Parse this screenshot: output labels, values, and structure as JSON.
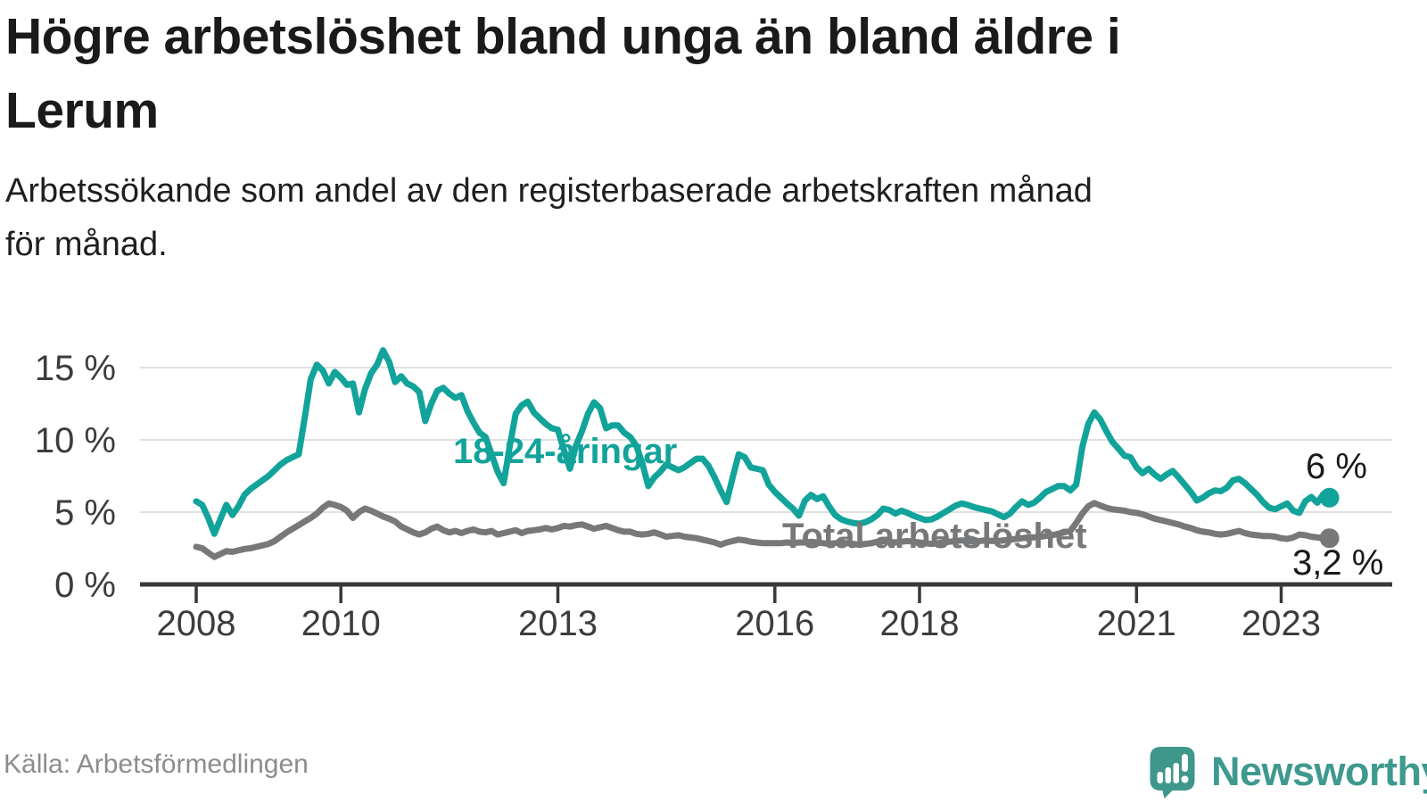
{
  "header": {
    "title_lines": [
      "Högre arbetslöshet bland unga än bland äldre i",
      "Lerum"
    ],
    "subtitle_lines": [
      "Arbetssökande som andel av den registerbaserade arbetskraften månad",
      "för månad."
    ]
  },
  "footer": {
    "source": "Källa: Arbetsförmedlingen",
    "brand": "Newsworthy"
  },
  "colors": {
    "youth": "#12a39a",
    "total": "#77787a",
    "grid": "#e0e0e0",
    "axis": "#383838",
    "tick_text": "#3c3c3c",
    "value_text": "#1a1a1a",
    "brand_teal": "#3e998e",
    "source_text": "#8c8c8c"
  },
  "chart_data": {
    "type": "line",
    "title": "Högre arbetslöshet bland unga än bland äldre i Lerum",
    "subtitle": "Arbetssökande som andel av den registerbaserade arbetskraften månad för månad.",
    "source": "Arbetsförmedlingen",
    "frequency": "monthly",
    "x_start": "2008-01",
    "x_end": "2023-09",
    "grid": "horizontal",
    "ylim": [
      0,
      17.5
    ],
    "x_ticks": [
      {
        "label": "2008",
        "year": 2008
      },
      {
        "label": "2010",
        "year": 2010
      },
      {
        "label": "2013",
        "year": 2013
      },
      {
        "label": "2016",
        "year": 2016
      },
      {
        "label": "2018",
        "year": 2018
      },
      {
        "label": "2021",
        "year": 2021
      },
      {
        "label": "2023",
        "year": 2023
      }
    ],
    "y_ticks": [
      {
        "label": "0 %",
        "value": 0
      },
      {
        "label": "5 %",
        "value": 5
      },
      {
        "label": "10 %",
        "value": 10
      },
      {
        "label": "15 %",
        "value": 15
      }
    ],
    "series": [
      {
        "name": "18-24-åringar",
        "color": "#12a39a",
        "end_label": "6 %",
        "end_value": 6.0,
        "values": [
          5.75,
          5.5,
          4.6,
          3.5,
          4.5,
          5.5,
          4.8,
          5.4,
          6.2,
          6.6,
          6.9,
          7.2,
          7.5,
          7.9,
          8.3,
          8.6,
          8.8,
          9.0,
          11.5,
          14.2,
          15.2,
          14.8,
          13.9,
          14.7,
          14.3,
          13.8,
          13.9,
          11.9,
          13.5,
          14.6,
          15.2,
          16.2,
          15.4,
          14.0,
          14.4,
          13.9,
          13.7,
          13.3,
          11.3,
          12.5,
          13.4,
          13.6,
          13.2,
          12.9,
          13.1,
          12.0,
          11.2,
          10.5,
          10.2,
          9.0,
          7.8,
          7.0,
          9.5,
          11.8,
          12.4,
          12.65,
          11.9,
          11.5,
          11.1,
          10.8,
          10.7,
          9.3,
          8.0,
          9.6,
          10.6,
          11.8,
          12.6,
          12.2,
          10.8,
          11.0,
          11.0,
          10.5,
          10.2,
          9.6,
          8.4,
          6.8,
          7.4,
          7.8,
          8.3,
          8.1,
          7.9,
          8.1,
          8.4,
          8.7,
          8.7,
          8.2,
          7.4,
          6.5,
          5.7,
          7.4,
          9.0,
          8.8,
          8.1,
          8.0,
          7.9,
          6.9,
          6.4,
          6.0,
          5.6,
          5.25,
          4.75,
          5.8,
          6.2,
          5.9,
          6.1,
          5.4,
          4.8,
          4.5,
          4.35,
          4.25,
          4.2,
          4.3,
          4.5,
          4.8,
          5.25,
          5.15,
          4.9,
          5.1,
          4.95,
          4.75,
          4.6,
          4.45,
          4.5,
          4.7,
          4.95,
          5.2,
          5.45,
          5.6,
          5.5,
          5.35,
          5.25,
          5.15,
          5.05,
          4.85,
          4.65,
          4.9,
          5.35,
          5.75,
          5.5,
          5.65,
          6.0,
          6.4,
          6.6,
          6.8,
          6.8,
          6.5,
          6.9,
          9.5,
          11.1,
          11.9,
          11.4,
          10.6,
          9.85,
          9.4,
          8.9,
          8.8,
          8.1,
          7.7,
          8.0,
          7.6,
          7.3,
          7.6,
          7.85,
          7.4,
          6.9,
          6.4,
          5.8,
          6.0,
          6.3,
          6.5,
          6.45,
          6.7,
          7.2,
          7.3,
          7.0,
          6.6,
          6.2,
          5.7,
          5.3,
          5.2,
          5.4,
          5.6,
          5.1,
          4.95,
          5.75,
          6.05,
          5.65,
          6.25,
          6.0
        ]
      },
      {
        "name": "Total arbetslöshet",
        "color": "#77787a",
        "end_label": "3,2 %",
        "end_value": 3.2,
        "values": [
          2.6,
          2.5,
          2.2,
          1.9,
          2.1,
          2.3,
          2.25,
          2.35,
          2.45,
          2.5,
          2.6,
          2.7,
          2.8,
          3.0,
          3.3,
          3.6,
          3.85,
          4.1,
          4.35,
          4.6,
          4.9,
          5.3,
          5.6,
          5.5,
          5.35,
          5.1,
          4.6,
          5.0,
          5.25,
          5.1,
          4.9,
          4.7,
          4.55,
          4.35,
          4.0,
          3.8,
          3.6,
          3.45,
          3.6,
          3.85,
          4.0,
          3.75,
          3.6,
          3.7,
          3.55,
          3.7,
          3.8,
          3.65,
          3.6,
          3.7,
          3.45,
          3.55,
          3.65,
          3.75,
          3.55,
          3.7,
          3.75,
          3.8,
          3.9,
          3.8,
          3.9,
          4.05,
          4.0,
          4.1,
          4.15,
          4.0,
          3.85,
          3.95,
          4.05,
          3.9,
          3.75,
          3.65,
          3.65,
          3.5,
          3.45,
          3.5,
          3.6,
          3.45,
          3.3,
          3.35,
          3.4,
          3.3,
          3.25,
          3.2,
          3.1,
          3.0,
          2.9,
          2.75,
          2.9,
          3.0,
          3.1,
          3.05,
          2.95,
          2.9,
          2.85,
          2.85,
          2.85,
          2.85,
          2.9,
          2.85,
          2.9,
          2.9,
          2.95,
          2.9,
          2.85,
          2.8,
          2.85,
          2.9,
          2.85,
          2.8,
          2.75,
          2.8,
          2.85,
          2.95,
          3.0,
          2.95,
          2.9,
          2.95,
          3.0,
          2.95,
          2.9,
          2.85,
          2.8,
          2.85,
          2.9,
          2.95,
          3.0,
          3.05,
          3.0,
          2.95,
          3.0,
          3.05,
          3.0,
          3.0,
          3.05,
          3.1,
          3.15,
          3.2,
          3.25,
          3.25,
          3.3,
          3.35,
          3.4,
          3.5,
          3.6,
          3.7,
          4.25,
          4.9,
          5.4,
          5.63,
          5.45,
          5.3,
          5.2,
          5.15,
          5.1,
          5.0,
          4.95,
          4.85,
          4.7,
          4.55,
          4.45,
          4.35,
          4.25,
          4.15,
          4.0,
          3.9,
          3.75,
          3.65,
          3.6,
          3.5,
          3.45,
          3.5,
          3.6,
          3.7,
          3.55,
          3.45,
          3.4,
          3.35,
          3.35,
          3.3,
          3.2,
          3.15,
          3.25,
          3.45,
          3.4,
          3.3,
          3.25,
          3.2,
          3.2
        ]
      }
    ]
  }
}
